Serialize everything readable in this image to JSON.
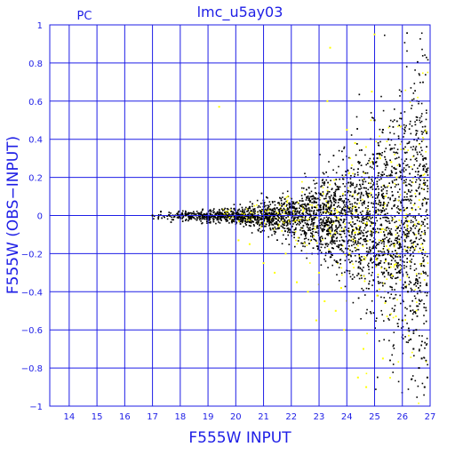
{
  "chart_data": {
    "type": "scatter",
    "title": "lmc_u5ay03",
    "corner_label": "PC",
    "xlabel": "F555W INPUT",
    "ylabel": "F555W (OBS−INPUT)",
    "xlim": [
      13.3,
      27
    ],
    "ylim": [
      -1,
      1
    ],
    "x_ticks": [
      14,
      15,
      16,
      17,
      18,
      19,
      20,
      21,
      22,
      23,
      24,
      25,
      26,
      27
    ],
    "y_ticks": [
      1,
      0.8,
      0.6,
      0.4,
      0.2,
      0,
      -0.2,
      -0.4,
      -0.6,
      -0.8,
      -1
    ],
    "y_tick_labels": [
      "1",
      "0.8",
      "0.6",
      "0.4",
      "0.2",
      "0",
      "−0.2",
      "−0.4",
      "−0.6",
      "−0.8",
      "−1"
    ],
    "grid": true,
    "colors": {
      "axis": "#1e1ee6",
      "grid": "#1e1ee6",
      "series_black": "#000000",
      "series_yellow": "#ffff00"
    },
    "series": [
      {
        "color": "black",
        "x": [
          17.0,
          17.3,
          17.6,
          17.9,
          18.2,
          18.5,
          18.8,
          19.1,
          19.4,
          19.7,
          20.0,
          20.3,
          20.6,
          20.9,
          21.2,
          21.5,
          21.8,
          22.1,
          22.4,
          22.7,
          23.0,
          23.3,
          23.6,
          23.9,
          24.2,
          24.5,
          24.8,
          25.1,
          25.3,
          25.5,
          25.7,
          25.9,
          26.1,
          26.3,
          26.5,
          26.7,
          26.9,
          25.2,
          25.4,
          25.6,
          25.0,
          25.8,
          26.0,
          26.2,
          26.4,
          26.6,
          26.8,
          24.9,
          25.1,
          25.3,
          25.5,
          25.7,
          25.9,
          26.1,
          26.3
        ],
        "y": [
          0.0,
          0.02,
          0.0,
          -0.01,
          0.0,
          0.01,
          0.0,
          -0.01,
          0.01,
          0.0,
          0.01,
          -0.01,
          0.0,
          0.02,
          -0.01,
          0.0,
          0.02,
          -0.02,
          0.01,
          0.0,
          0.03,
          -0.05,
          0.08,
          -0.08,
          0.1,
          -0.12,
          0.2,
          0.3,
          0.45,
          0.4,
          0.25,
          -0.3,
          -0.35,
          -0.5,
          -0.6,
          -0.75,
          -0.85,
          -0.25,
          -0.45,
          0.35,
          0.5,
          -0.2,
          -0.55,
          -0.4,
          -0.7,
          -0.8,
          -0.9,
          0.15,
          -0.15,
          0.1,
          -0.3,
          0.05,
          0.2,
          -0.1,
          -0.65
        ]
      },
      {
        "color": "yellow",
        "x": [
          19.4,
          20.1,
          20.5,
          21.0,
          21.4,
          21.8,
          22.2,
          22.6,
          23.0,
          23.2,
          23.4,
          23.6,
          23.9,
          24.1,
          24.3,
          24.6,
          24.9,
          25.0,
          25.2,
          25.4,
          25.6,
          25.8,
          24.4,
          23.3,
          23.8,
          24.7,
          25.1,
          25.3,
          22.9,
          24.0
        ],
        "y": [
          0.57,
          -0.13,
          -0.15,
          -0.25,
          -0.3,
          -0.2,
          -0.35,
          -0.4,
          -0.3,
          -0.45,
          0.88,
          -0.5,
          -0.6,
          -0.2,
          0.38,
          -0.7,
          0.65,
          0.95,
          0.3,
          0.1,
          0.28,
          0.2,
          -0.85,
          0.6,
          -0.38,
          -0.9,
          -0.42,
          -0.75,
          -0.55,
          0.45
        ]
      }
    ]
  }
}
